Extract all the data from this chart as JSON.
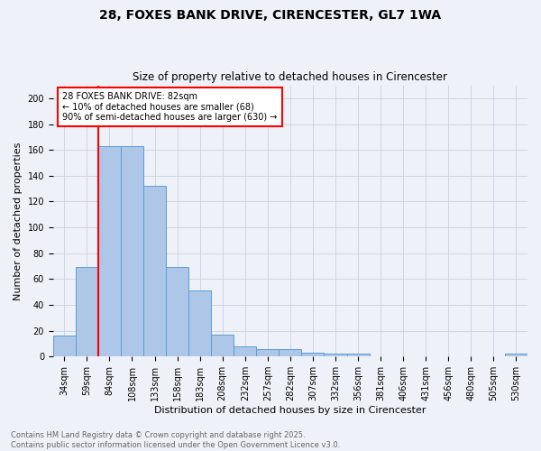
{
  "title": "28, FOXES BANK DRIVE, CIRENCESTER, GL7 1WA",
  "subtitle": "Size of property relative to detached houses in Cirencester",
  "xlabel": "Distribution of detached houses by size in Cirencester",
  "ylabel": "Number of detached properties",
  "bin_labels": [
    "34sqm",
    "59sqm",
    "84sqm",
    "108sqm",
    "133sqm",
    "158sqm",
    "183sqm",
    "208sqm",
    "232sqm",
    "257sqm",
    "282sqm",
    "307sqm",
    "332sqm",
    "356sqm",
    "381sqm",
    "406sqm",
    "431sqm",
    "456sqm",
    "480sqm",
    "505sqm",
    "530sqm"
  ],
  "bar_heights": [
    16,
    69,
    163,
    163,
    132,
    69,
    51,
    17,
    8,
    6,
    6,
    3,
    2,
    2,
    0,
    0,
    0,
    0,
    0,
    0,
    2
  ],
  "bar_color": "#aec6e8",
  "bar_edge_color": "#5a9fd4",
  "vline_bin_index": 2,
  "vline_color": "red",
  "annotation_text": "28 FOXES BANK DRIVE: 82sqm\n← 10% of detached houses are smaller (68)\n90% of semi-detached houses are larger (630) →",
  "annotation_box_color": "white",
  "annotation_box_edge_color": "red",
  "footer": "Contains HM Land Registry data © Crown copyright and database right 2025.\nContains public sector information licensed under the Open Government Licence v3.0.",
  "ylim": [
    0,
    210
  ],
  "yticks": [
    0,
    20,
    40,
    60,
    80,
    100,
    120,
    140,
    160,
    180,
    200
  ],
  "grid_color": "#c8d0e0",
  "bg_color": "#eef1f8",
  "title_fontsize": 10,
  "subtitle_fontsize": 8.5,
  "ylabel_fontsize": 8,
  "xlabel_fontsize": 8,
  "tick_fontsize": 7,
  "footer_fontsize": 6,
  "footer_color": "#666666"
}
